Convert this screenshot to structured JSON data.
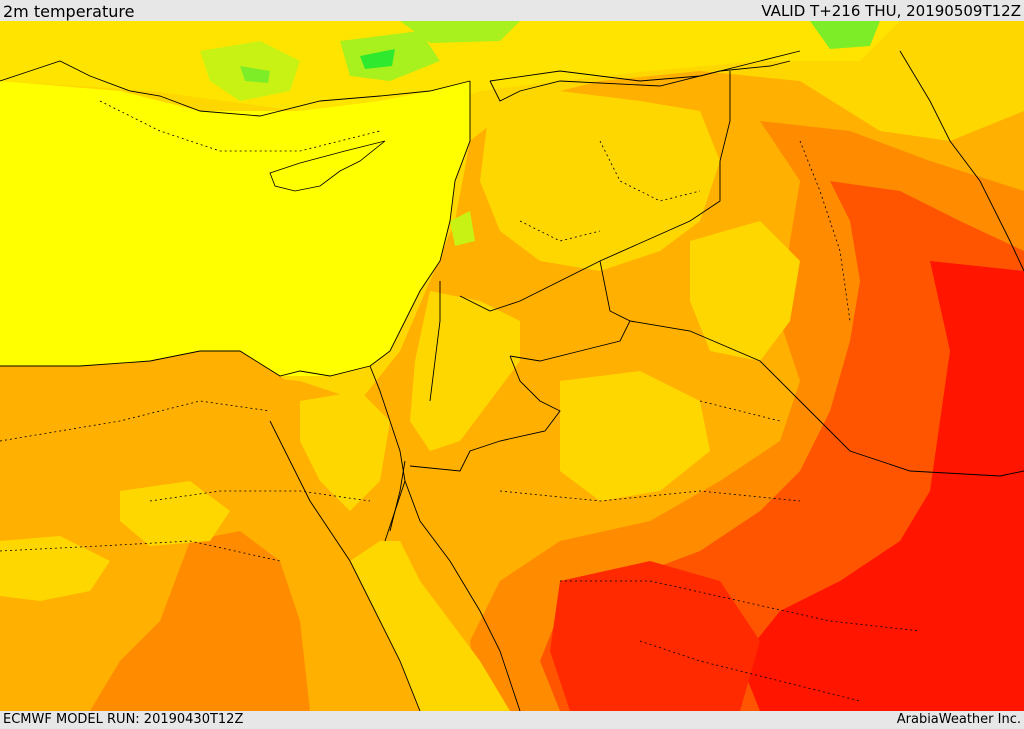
{
  "header": {
    "title": "2m temperature",
    "valid": "VALID T+216 THU, 20190509T12Z"
  },
  "footer": {
    "model_run": "ECMWF MODEL RUN: 20190430T12Z",
    "credit": "ArabiaWeather Inc."
  },
  "map": {
    "field": "2m temperature",
    "palette": [
      "#2ee92e",
      "#a8f01e",
      "#ffff00",
      "#ffd700",
      "#ffb000",
      "#ff8c00",
      "#ff5500",
      "#ff1500"
    ]
  }
}
